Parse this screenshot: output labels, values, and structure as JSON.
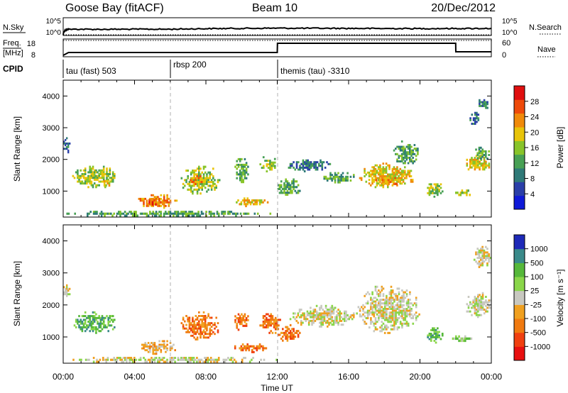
{
  "header": {
    "station": "Goose Bay (fitACF)",
    "beam": "Beam 10",
    "date": "20/Dec/2012"
  },
  "strip_panels": {
    "sky": {
      "left_label": "N.Sky",
      "left_ticks": [
        "10^5",
        "10^0"
      ],
      "right_ticks": [
        "10^5",
        "10^0"
      ],
      "right_label": "N.Search"
    },
    "freq": {
      "left_label_1": "Freq.",
      "left_label_2": "[MHz]",
      "left_ticks": [
        "18",
        "8"
      ],
      "right_ticks": [
        "60",
        "0"
      ],
      "right_label": "Nave"
    },
    "cpid": {
      "label": "CPID",
      "segments": [
        {
          "text": "tau (fast) 503",
          "start_hour": 0
        },
        {
          "text": "rbsp 200",
          "start_hour": 6
        },
        {
          "text": "themis (tau) -3310",
          "start_hour": 12
        }
      ]
    }
  },
  "power_panel": {
    "ylabel": "Slant Range [km]",
    "yticks": [
      "4000",
      "3000",
      "2000",
      "1000"
    ],
    "colorbar_label": "Power [dB]",
    "colorbar_ticks": [
      "28",
      "24",
      "20",
      "16",
      "12",
      "8",
      "4"
    ]
  },
  "velocity_panel": {
    "ylabel": "Slant Range [km]",
    "yticks": [
      "4000",
      "3000",
      "2000",
      "1000"
    ],
    "colorbar_label": "Velocity [m s⁻¹]",
    "colorbar_ticks": [
      "1000",
      "500",
      "100",
      "25",
      "-25",
      "-100",
      "-500",
      "-1000"
    ]
  },
  "x_axis": {
    "label": "Time UT",
    "ticks": [
      "00:00",
      "04:00",
      "08:00",
      "12:00",
      "16:00",
      "20:00",
      "00:00"
    ]
  },
  "colors": {
    "power_scale": [
      "#0f1ad8",
      "#2a3fa8",
      "#2f7a78",
      "#48a055",
      "#88c42a",
      "#e8c40a",
      "#f08a0a",
      "#ee4a0a",
      "#e00f0f"
    ],
    "velocity_scale": [
      "#1e2ab8",
      "#3a8a8a",
      "#56b83a",
      "#8ad64a",
      "#c8c8c0",
      "#f0a020",
      "#f07a10",
      "#f04010",
      "#e81010"
    ]
  },
  "chart_data": [
    {
      "type": "line",
      "title": "N.Sky / N.Search",
      "x_range_hours": [
        0,
        24
      ],
      "series": [
        {
          "name": "N.Sky",
          "x": [
            0,
            0.3,
            2,
            4,
            6,
            8,
            10,
            12,
            14,
            16,
            18,
            20,
            22,
            24
          ],
          "y": [
            1,
            60,
            55,
            60,
            60,
            90,
            110,
            130,
            120,
            110,
            100,
            95,
            100,
            110
          ]
        },
        {
          "name": "N.Search",
          "x": [
            0,
            24
          ],
          "y": [
            1,
            1
          ]
        }
      ]
    },
    {
      "type": "line",
      "title": "Freq. / Nave",
      "series": [
        {
          "name": "Freq.",
          "x": [
            0,
            0.3,
            12,
            12.01,
            22,
            22.01,
            24
          ],
          "y": [
            8.5,
            10.5,
            10.5,
            17,
            17,
            11,
            11
          ]
        },
        {
          "name": "Nave",
          "x": [
            0,
            24
          ],
          "y": [
            19,
            19
          ]
        }
      ]
    },
    {
      "type": "heatmap",
      "title": "Power",
      "xlabel": "Time UT",
      "ylabel": "Slant Range [km]",
      "colorbar": "Power [dB]",
      "xlim": [
        0,
        24
      ],
      "ylim": [
        180,
        4500
      ],
      "clim": [
        0,
        30
      ],
      "patches": [
        {
          "t0": 0.0,
          "t1": 0.4,
          "r0": 2200,
          "r1": 2700,
          "level": 8
        },
        {
          "t0": 0.5,
          "t1": 3.0,
          "r0": 1100,
          "r1": 1800,
          "level": 14
        },
        {
          "t0": 2.0,
          "t1": 2.8,
          "r0": 1150,
          "r1": 1350,
          "level": 20
        },
        {
          "t0": 4.2,
          "t1": 6.4,
          "r0": 450,
          "r1": 900,
          "level": 22
        },
        {
          "t0": 4.6,
          "t1": 5.6,
          "r0": 550,
          "r1": 750,
          "level": 26
        },
        {
          "t0": 0.0,
          "t1": 12.0,
          "r0": 200,
          "r1": 380,
          "level": 10
        },
        {
          "t0": 6.5,
          "t1": 8.8,
          "r0": 900,
          "r1": 1800,
          "level": 14
        },
        {
          "t0": 7.0,
          "t1": 8.0,
          "r0": 1200,
          "r1": 1500,
          "level": 22
        },
        {
          "t0": 9.5,
          "t1": 11.5,
          "r0": 500,
          "r1": 800,
          "level": 20
        },
        {
          "t0": 9.6,
          "t1": 10.4,
          "r0": 1200,
          "r1": 2100,
          "level": 10
        },
        {
          "t0": 11.0,
          "t1": 12.0,
          "r0": 1600,
          "r1": 2100,
          "level": 14
        },
        {
          "t0": 12.0,
          "t1": 13.3,
          "r0": 800,
          "r1": 1400,
          "level": 12
        },
        {
          "t0": 12.6,
          "t1": 15.0,
          "r0": 1600,
          "r1": 2000,
          "level": 8
        },
        {
          "t0": 14.5,
          "t1": 16.5,
          "r0": 1250,
          "r1": 1600,
          "level": 12
        },
        {
          "t0": 16.5,
          "t1": 19.8,
          "r0": 1100,
          "r1": 1900,
          "level": 18
        },
        {
          "t0": 17.5,
          "t1": 19.0,
          "r0": 1200,
          "r1": 1500,
          "level": 24
        },
        {
          "t0": 18.5,
          "t1": 20.0,
          "r0": 1800,
          "r1": 2600,
          "level": 10
        },
        {
          "t0": 20.3,
          "t1": 21.3,
          "r0": 800,
          "r1": 1300,
          "level": 14
        },
        {
          "t0": 21.8,
          "t1": 23.0,
          "r0": 850,
          "r1": 1050,
          "level": 14
        },
        {
          "t0": 22.5,
          "t1": 24.0,
          "r0": 1600,
          "r1": 2200,
          "level": 20
        },
        {
          "t0": 23.0,
          "t1": 24.0,
          "r0": 2000,
          "r1": 2400,
          "level": 12
        },
        {
          "t0": 22.6,
          "t1": 23.4,
          "r0": 3100,
          "r1": 3500,
          "level": 6
        },
        {
          "t0": 23.2,
          "t1": 24.0,
          "r0": 3600,
          "r1": 3900,
          "level": 6
        }
      ]
    },
    {
      "type": "heatmap",
      "title": "Velocity",
      "xlabel": "Time UT",
      "ylabel": "Slant Range [km]",
      "colorbar": "Velocity [m s⁻¹]",
      "xlim": [
        0,
        24
      ],
      "ylim": [
        180,
        4500
      ],
      "patches": [
        {
          "t0": 0.0,
          "t1": 0.4,
          "r0": 2200,
          "r1": 2700,
          "level": 4
        },
        {
          "t0": 0.5,
          "t1": 3.0,
          "r0": 1100,
          "r1": 1800,
          "level": 2
        },
        {
          "t0": 0.0,
          "t1": 12.0,
          "r0": 200,
          "r1": 380,
          "level": 4
        },
        {
          "t0": 4.2,
          "t1": 6.4,
          "r0": 450,
          "r1": 900,
          "level": 5
        },
        {
          "t0": 6.5,
          "t1": 8.8,
          "r0": 900,
          "r1": 1800,
          "level": 6
        },
        {
          "t0": 9.5,
          "t1": 11.5,
          "r0": 500,
          "r1": 800,
          "level": 6
        },
        {
          "t0": 9.6,
          "t1": 10.4,
          "r0": 1200,
          "r1": 1800,
          "level": 6
        },
        {
          "t0": 11.0,
          "t1": 12.2,
          "r0": 1100,
          "r1": 1800,
          "level": 6
        },
        {
          "t0": 12.0,
          "t1": 13.3,
          "r0": 800,
          "r1": 1400,
          "level": 6
        },
        {
          "t0": 12.6,
          "t1": 16.5,
          "r0": 1300,
          "r1": 2000,
          "level": 4
        },
        {
          "t0": 16.5,
          "t1": 20.0,
          "r0": 1100,
          "r1": 2600,
          "level": 4
        },
        {
          "t0": 20.3,
          "t1": 21.3,
          "r0": 800,
          "r1": 1300,
          "level": 2
        },
        {
          "t0": 21.8,
          "t1": 23.0,
          "r0": 850,
          "r1": 1050,
          "level": 3
        },
        {
          "t0": 22.5,
          "t1": 24.0,
          "r0": 1600,
          "r1": 2400,
          "level": 4
        },
        {
          "t0": 23.0,
          "t1": 24.0,
          "r0": 3100,
          "r1": 3900,
          "level": 4
        }
      ]
    }
  ]
}
